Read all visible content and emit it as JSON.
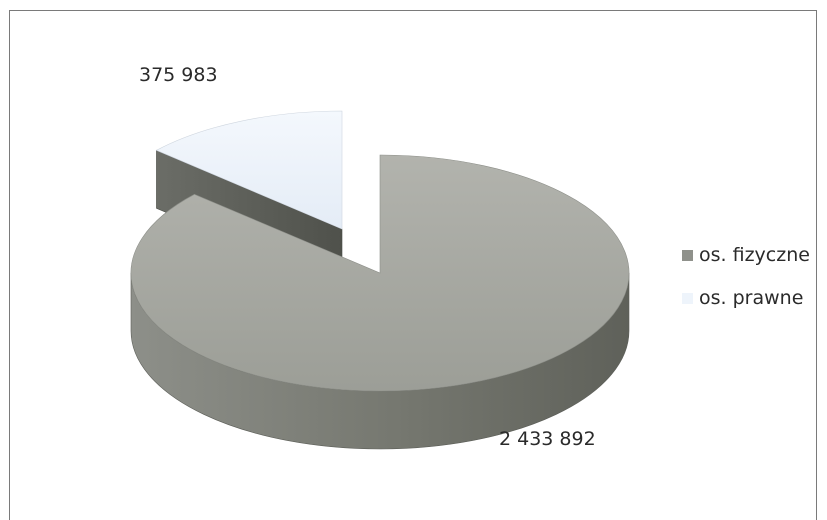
{
  "chart_data": {
    "type": "pie",
    "title": "",
    "three_d": true,
    "exploded_slice": "os. prawne",
    "legend_position": "right",
    "series": [
      {
        "slices": [
          {
            "label": "os. fizyczne",
            "value": 2433892,
            "value_label": "2 433 892",
            "color": "#a7a9a2"
          },
          {
            "label": "os. prawne",
            "value": 375983,
            "value_label": "375 983",
            "color": "#eef4fb"
          }
        ]
      }
    ]
  }
}
